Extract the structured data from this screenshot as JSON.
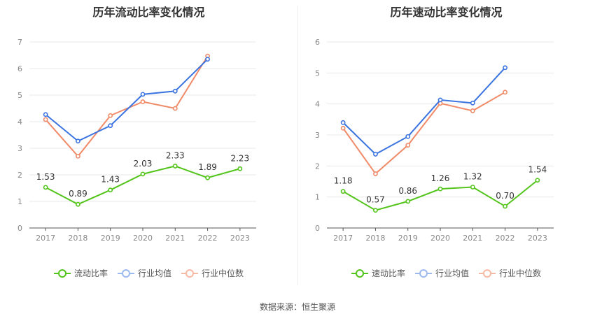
{
  "source": "数据来源：恒生聚源",
  "colors": {
    "current": "#52c41a",
    "industry_avg": "#3b74e0",
    "industry_median": "#f08a68"
  },
  "chart_data": [
    {
      "type": "line",
      "title": "历年流动比率变化情况",
      "categories": [
        "2017",
        "2018",
        "2019",
        "2020",
        "2021",
        "2022",
        "2023"
      ],
      "ylim": [
        0,
        7
      ],
      "yticks": [
        0,
        1,
        2,
        3,
        4,
        5,
        6,
        7
      ],
      "grid": true,
      "legend_position": "bottom",
      "series": [
        {
          "name": "流动比率",
          "key": "current",
          "labeled": true,
          "values": [
            1.53,
            0.89,
            1.43,
            2.03,
            2.33,
            1.89,
            2.23
          ],
          "labels": [
            "1.53",
            "0.89",
            "1.43",
            "2.03",
            "2.33",
            "1.89",
            "2.23"
          ]
        },
        {
          "name": "行业均值",
          "key": "industry_avg",
          "values": [
            4.27,
            3.27,
            3.85,
            5.03,
            5.15,
            6.35,
            null
          ]
        },
        {
          "name": "行业中位数",
          "key": "industry_median",
          "values": [
            4.08,
            2.7,
            4.23,
            4.75,
            4.5,
            6.47,
            null
          ]
        }
      ]
    },
    {
      "type": "line",
      "title": "历年速动比率变化情况",
      "categories": [
        "2017",
        "2018",
        "2019",
        "2020",
        "2021",
        "2022",
        "2023"
      ],
      "ylim": [
        0,
        6
      ],
      "yticks": [
        0,
        1,
        2,
        3,
        4,
        5,
        6
      ],
      "grid": true,
      "legend_position": "bottom",
      "series": [
        {
          "name": "速动比率",
          "key": "current",
          "labeled": true,
          "values": [
            1.18,
            0.57,
            0.86,
            1.26,
            1.32,
            0.7,
            1.54
          ],
          "labels": [
            "1.18",
            "0.57",
            "0.86",
            "1.26",
            "1.32",
            "0.70",
            "1.54"
          ]
        },
        {
          "name": "行业均值",
          "key": "industry_avg",
          "values": [
            3.4,
            2.38,
            2.95,
            4.13,
            4.03,
            5.17,
            null
          ]
        },
        {
          "name": "行业中位数",
          "key": "industry_median",
          "values": [
            3.22,
            1.75,
            2.67,
            4.02,
            3.78,
            4.38,
            null
          ]
        }
      ]
    }
  ]
}
